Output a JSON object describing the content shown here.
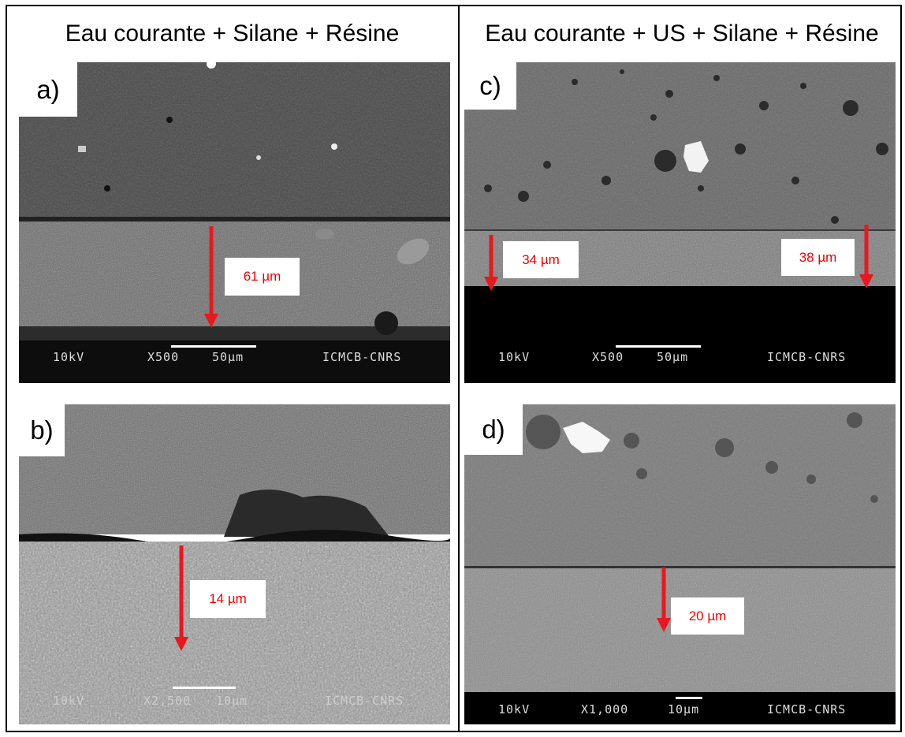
{
  "headers": {
    "left": "Eau courante + Silane + Résine",
    "right": "Eau courante + US + Silane + Résine"
  },
  "panels": {
    "a": {
      "tag": "a)",
      "measurements": [
        "61 µm"
      ],
      "sem": {
        "kv": "10kV",
        "mag": "X500",
        "scale": "50µm",
        "lab": "ICMCB-CNRS"
      }
    },
    "b": {
      "tag": "b)",
      "measurements": [
        "14 µm"
      ],
      "sem": {
        "kv": "10kV",
        "mag": "X2,500",
        "scale": "10µm",
        "lab": "ICMCB-CNRS"
      }
    },
    "c": {
      "tag": "c)",
      "measurements": [
        "34 µm",
        "38 µm"
      ],
      "sem": {
        "kv": "10kV",
        "mag": "X500",
        "scale": "50µm",
        "lab": "ICMCB-CNRS"
      }
    },
    "d": {
      "tag": "d)",
      "measurements": [
        "20 µm"
      ],
      "sem": {
        "kv": "10kV",
        "mag": "X1,000",
        "scale": "10µm",
        "lab": "ICMCB-CNRS"
      }
    }
  },
  "colors": {
    "arrow": "#e8181e",
    "measure_text": "#e00000"
  }
}
